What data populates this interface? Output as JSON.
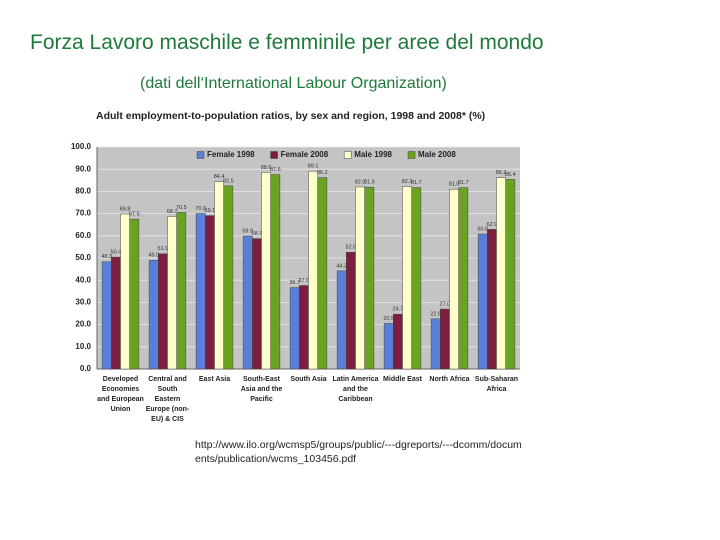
{
  "slide": {
    "title": "Forza Lavoro maschile e femminile per aree del mondo",
    "subtitle": "(dati dell‘International Labour Organization)",
    "source": "http://www.ilo.org/wcmsp5/groups/public/---dgreports/---dcomm/documents/publication/wcms_103456.pdf"
  },
  "chart_data": {
    "type": "bar",
    "title": "Adult employment-to-population ratios, by sex and region, 1998 and 2008* (%)",
    "categories": [
      "Developed Economies and European Union",
      "Central and South Eastern Europe (non-EU) & CIS",
      "East Asia",
      "South-East Asia and the Pacific",
      "South Asia",
      "Latin America and the Caribbean",
      "Middle East",
      "North Africa",
      "Sub-Saharan Africa"
    ],
    "series": [
      {
        "name": "Female 1998",
        "color": "#5a7fd8",
        "values": [
          48.3,
          49.0,
          70.0,
          59.9,
          36.7,
          44.2,
          20.5,
          22.6,
          60.8
        ],
        "value_labels": [
          "48.3",
          "49.0",
          "70.0",
          "59.9",
          "36.7",
          "44.2",
          "20.5",
          "22.6",
          "60.8"
        ]
      },
      {
        "name": "Female 2008",
        "color": "#7d1d3f",
        "values": [
          50.4,
          51.9,
          69.1,
          58.7,
          37.6,
          52.6,
          24.7,
          27.0,
          62.9
        ],
        "value_labels": [
          "50.4",
          "51.9",
          "69.1",
          "58.7",
          "37.6",
          "52.6",
          "24.7",
          "27.0",
          "62.9"
        ]
      },
      {
        "name": "Male 1998",
        "color": "#ffffcc",
        "values": [
          69.8,
          68.7,
          84.4,
          88.6,
          89.1,
          82.0,
          82.2,
          81.0,
          86.2
        ],
        "value_labels": [
          "69.8",
          "68.7",
          "84.4",
          "88.6",
          "89.1",
          "82.0",
          "82.2",
          "81.0",
          "86.2"
        ]
      },
      {
        "name": "Male 2008",
        "color": "#6aa222",
        "values": [
          67.5,
          70.5,
          82.5,
          87.6,
          86.2,
          81.9,
          81.7,
          81.7,
          85.4
        ],
        "value_labels": [
          "67.5",
          "70.5",
          "82.5",
          "87.6",
          "86.2",
          "81.9",
          "81.7",
          "81.7",
          "85.4"
        ]
      }
    ],
    "ylim": [
      0,
      100
    ],
    "yticks": [
      {
        "value": 0,
        "label": "0.0"
      },
      {
        "value": 10,
        "label": "10.0"
      },
      {
        "value": 20,
        "label": "20.0"
      },
      {
        "value": 30,
        "label": "30.0"
      },
      {
        "value": 40,
        "label": "40.0"
      },
      {
        "value": 50,
        "label": "50.0"
      },
      {
        "value": 60,
        "label": "60.0"
      },
      {
        "value": 70,
        "label": "70.0"
      },
      {
        "value": 80,
        "label": "80.0"
      },
      {
        "value": 90,
        "label": "90.0"
      },
      {
        "value": 100,
        "label": "100.0"
      }
    ],
    "grid": true,
    "legend": "top"
  }
}
